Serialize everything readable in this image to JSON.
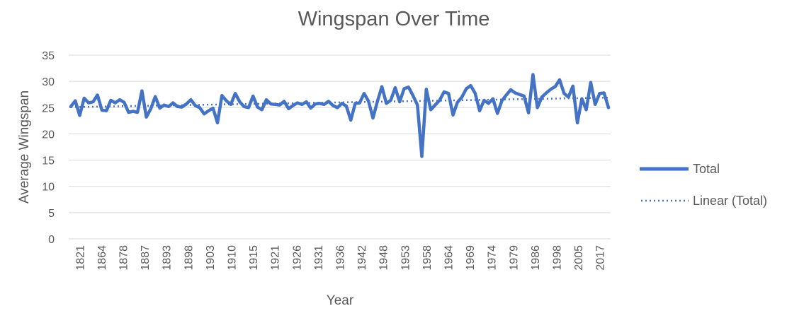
{
  "chart_data": {
    "type": "line",
    "title": "Wingspan Over Time",
    "xlabel": "Year",
    "ylabel": "Average Wingspan",
    "ylim": [
      0,
      35
    ],
    "yticks": [
      0,
      5,
      10,
      15,
      20,
      25,
      30,
      35
    ],
    "grid": "horizontal",
    "legend_position": "right",
    "x_tick_labels": [
      "1821",
      "1864",
      "1878",
      "1887",
      "1893",
      "1898",
      "1903",
      "1910",
      "1915",
      "1921",
      "1926",
      "1931",
      "1936",
      "1942",
      "1948",
      "1953",
      "1958",
      "1964",
      "1969",
      "1974",
      "1979",
      "1986",
      "1998",
      "2005",
      "2017"
    ],
    "series": [
      {
        "name": "Total",
        "style": "solid",
        "color": "#4472C4",
        "values": [
          25.2,
          26.3,
          23.5,
          26.8,
          25.9,
          26.1,
          27.4,
          24.5,
          24.4,
          26.4,
          25.9,
          26.5,
          26.0,
          24.1,
          24.3,
          24.1,
          28.2,
          23.2,
          24.8,
          27.1,
          24.9,
          25.5,
          25.2,
          25.9,
          25.2,
          25.1,
          25.7,
          26.5,
          25.4,
          25.0,
          23.8,
          24.4,
          24.9,
          22.1,
          27.3,
          26.3,
          25.6,
          27.7,
          26.1,
          25.2,
          25.0,
          27.2,
          25.1,
          24.6,
          26.5,
          25.7,
          25.6,
          25.5,
          26.2,
          24.8,
          25.4,
          25.9,
          25.6,
          26.1,
          24.9,
          25.7,
          25.8,
          25.6,
          26.2,
          25.4,
          25.0,
          25.8,
          25.3,
          22.6,
          25.8,
          25.9,
          27.7,
          26.2,
          23.0,
          26.2,
          29.0,
          25.8,
          26.4,
          28.8,
          26.1,
          28.6,
          28.9,
          27.3,
          25.5,
          15.7,
          28.5,
          24.6,
          25.5,
          26.4,
          28.0,
          27.7,
          23.6,
          26.0,
          27.0,
          28.6,
          29.2,
          27.7,
          24.4,
          26.4,
          25.8,
          26.7,
          23.9,
          26.3,
          27.4,
          28.4,
          27.8,
          27.5,
          27.2,
          24.0,
          31.3,
          25.0,
          27.0,
          27.8,
          28.5,
          29.0,
          30.3,
          27.7,
          27.0,
          29.1,
          22.1,
          26.7,
          24.6,
          29.8,
          25.6,
          27.7,
          27.8,
          25.0
        ]
      },
      {
        "name": "Linear (Total)",
        "style": "dotted",
        "color": "#4472C4",
        "start": 25.1,
        "end": 26.9
      }
    ]
  }
}
